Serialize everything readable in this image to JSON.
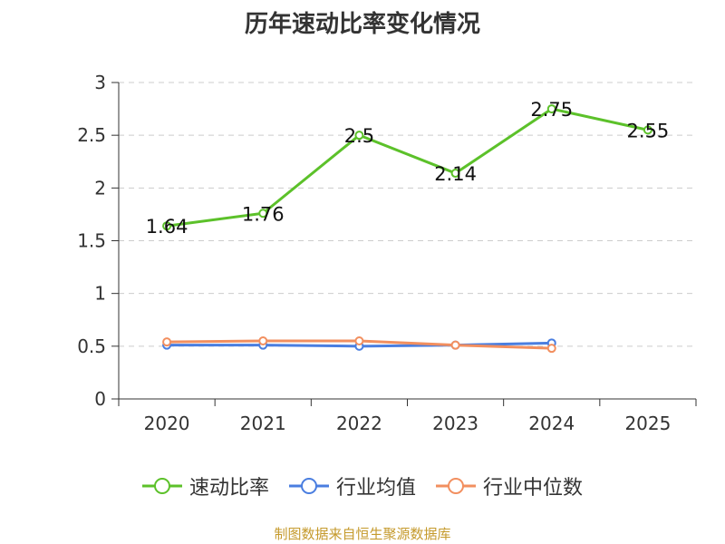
{
  "chart_data": {
    "type": "line",
    "title": "历年速动比率变化情况",
    "categories": [
      "2020",
      "2021",
      "2022",
      "2023",
      "2024",
      "2025"
    ],
    "ylim": [
      0,
      3
    ],
    "yticks": [
      0,
      0.5,
      1,
      1.5,
      2,
      2.5,
      3
    ],
    "ytick_labels": [
      "0",
      "0.5",
      "1",
      "1.5",
      "2",
      "2.5",
      "3"
    ],
    "grid": true,
    "legend_position": "bottom",
    "series": [
      {
        "name": "速动比率",
        "color": "#5cc12a",
        "values": [
          1.64,
          1.76,
          2.5,
          2.14,
          2.75,
          2.55
        ],
        "labels": [
          "1.64",
          "1.76",
          "2.5",
          "2.14",
          "2.75",
          "2.55"
        ]
      },
      {
        "name": "行业均值",
        "color": "#4a7ee0",
        "values": [
          0.51,
          0.51,
          0.5,
          0.51,
          0.53,
          null
        ]
      },
      {
        "name": "行业中位数",
        "color": "#f28f5f",
        "values": [
          0.54,
          0.55,
          0.55,
          0.51,
          0.48,
          null
        ]
      }
    ]
  },
  "footer": {
    "source": "制图数据来自恒生聚源数据库"
  }
}
